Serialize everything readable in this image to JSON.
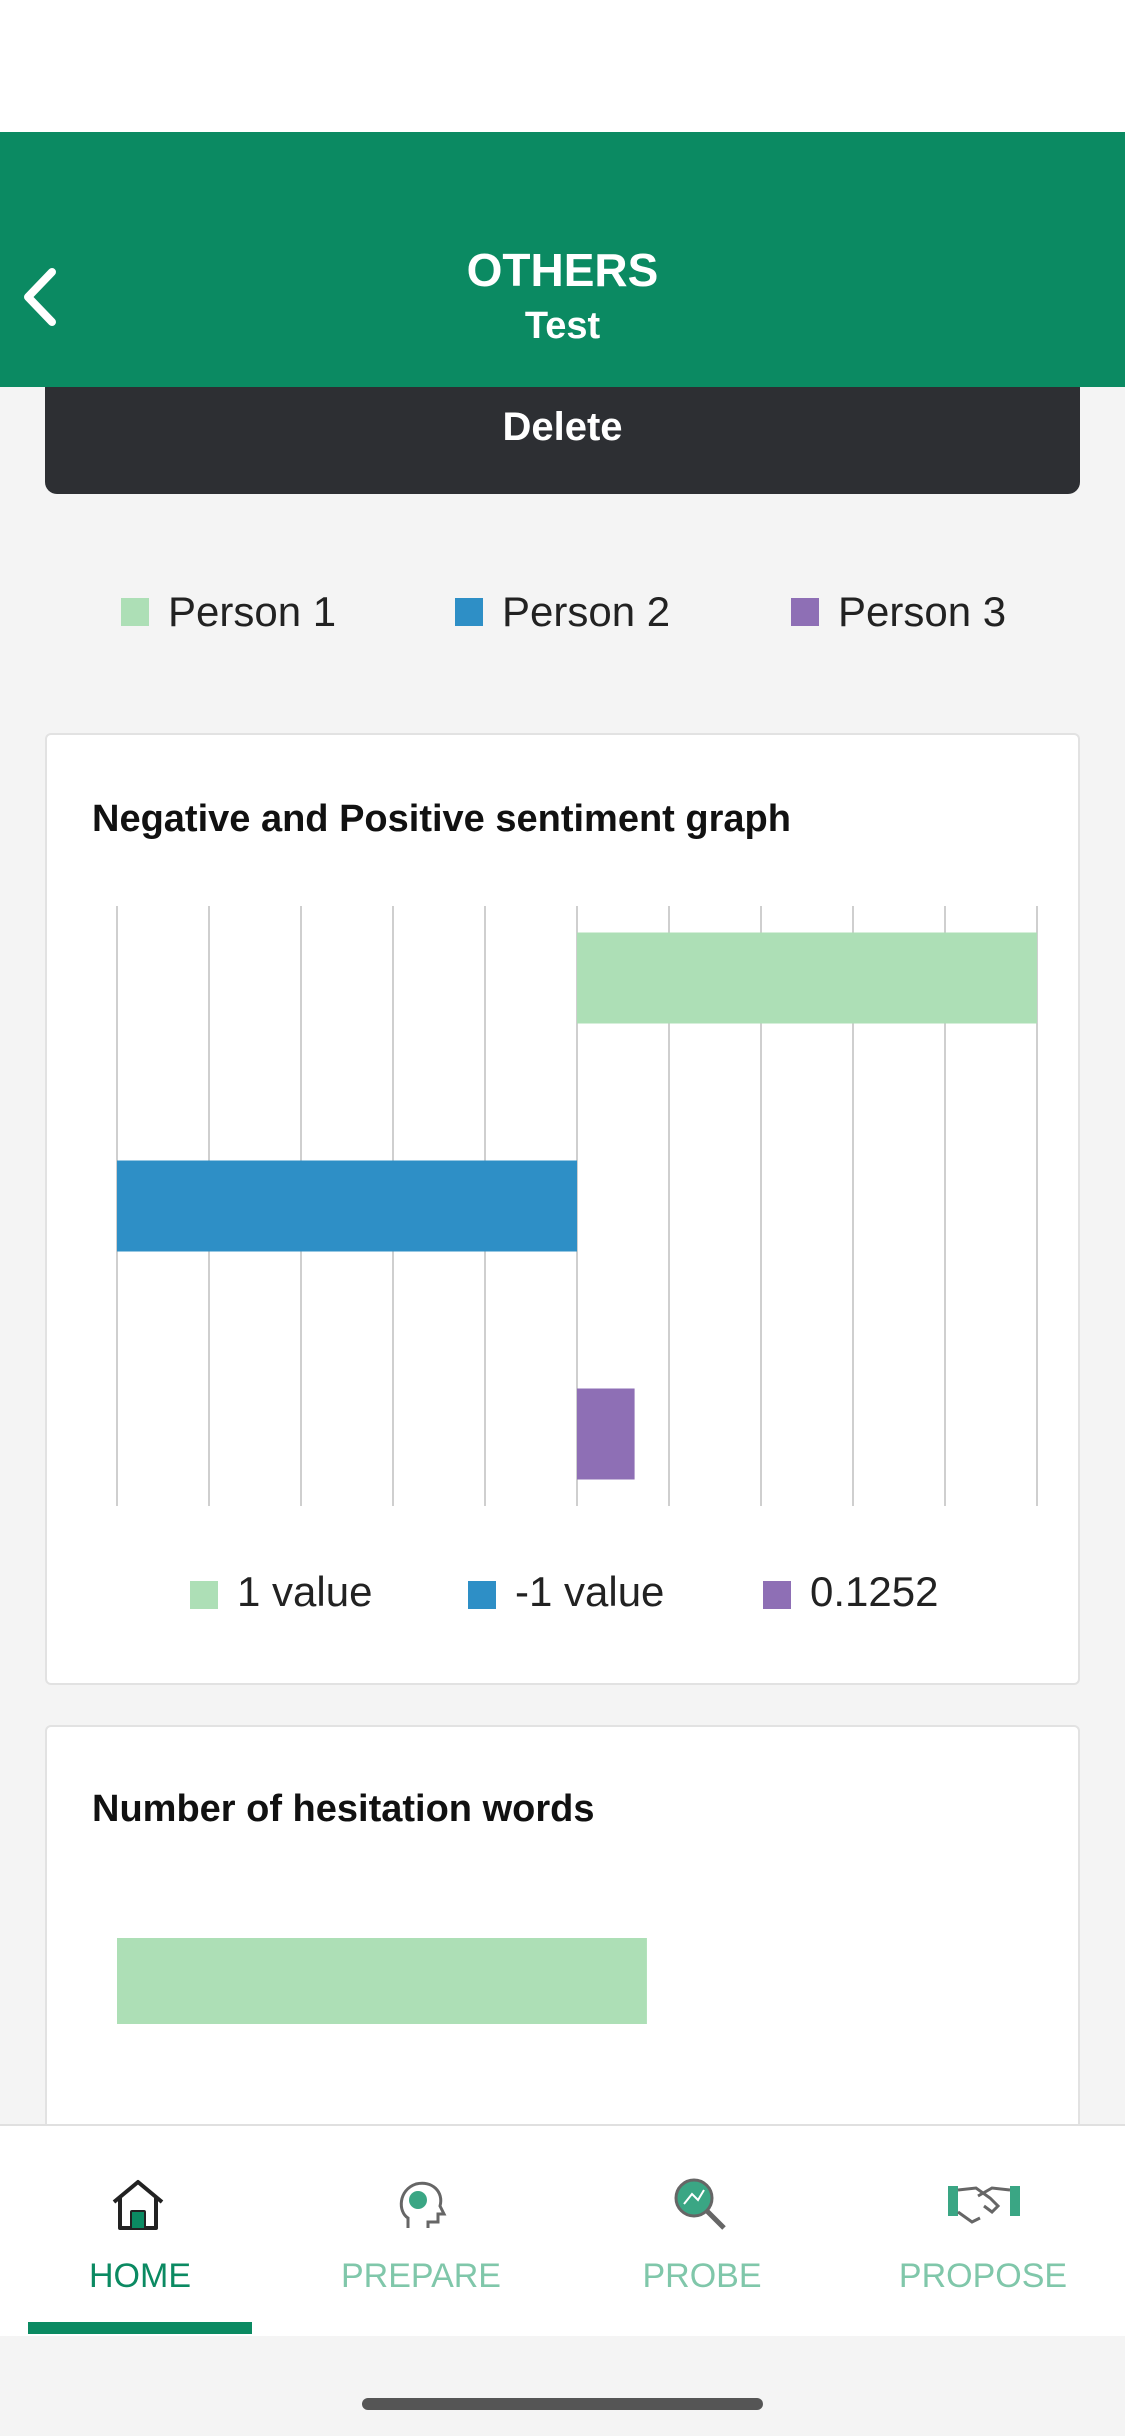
{
  "header": {
    "title": "OTHERS",
    "subtitle": "Test"
  },
  "delete_button": "Delete",
  "chart_data": [
    {
      "type": "bar",
      "orientation": "horizontal",
      "title": "Negative and Positive sentiment graph",
      "xlim": [
        -1,
        1
      ],
      "xticks": [
        -1,
        -0.8,
        -0.6,
        -0.4,
        -0.2,
        0,
        0.2,
        0.4,
        0.6,
        0.8,
        1
      ],
      "grid": true,
      "series": [
        {
          "name": "Person 1",
          "color": "#addfb6",
          "values": [
            1
          ],
          "value_labels": [
            "1 value"
          ]
        },
        {
          "name": "Person 2",
          "color": "#2e8fc6",
          "values": [
            -1
          ],
          "value_labels": [
            "-1 value"
          ]
        },
        {
          "name": "Person 3",
          "color": "#8e6fb5",
          "values": [
            0.1252
          ],
          "value_labels": [
            "0.1252"
          ]
        }
      ]
    },
    {
      "type": "bar",
      "orientation": "horizontal",
      "title": "Number of hesitation words",
      "xlim": [
        0,
        10
      ],
      "grid": false,
      "series": [
        {
          "color": "#addfb6",
          "values": [
            5.76
          ]
        }
      ]
    }
  ],
  "nav": [
    {
      "label": "HOME",
      "active": true
    },
    {
      "label": "PREPARE",
      "active": false
    },
    {
      "label": "PROBE",
      "active": false
    },
    {
      "label": "PROPOSE",
      "active": false
    }
  ]
}
